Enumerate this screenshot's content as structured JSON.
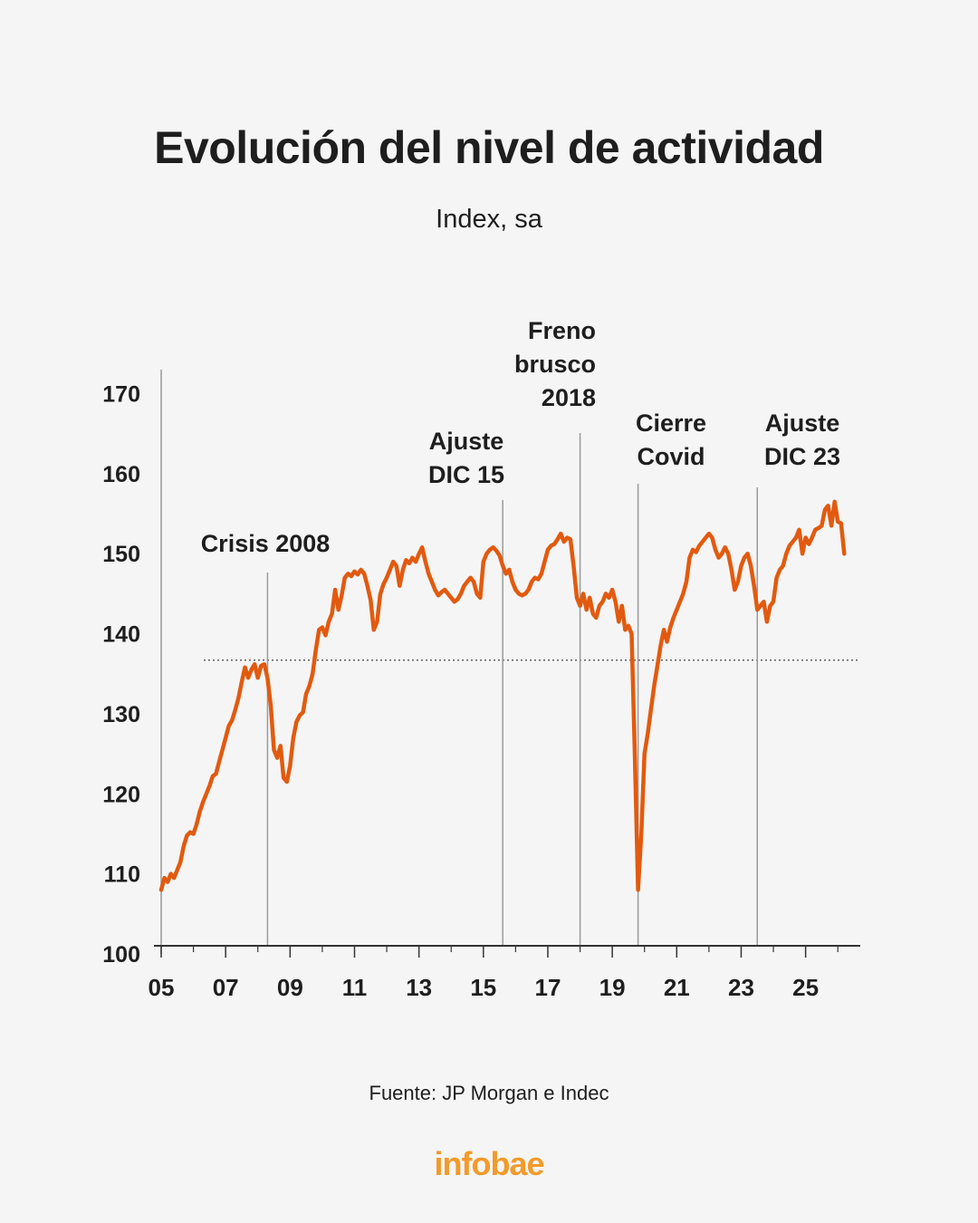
{
  "header": {
    "title": "Evolución del nivel de actividad",
    "subtitle": "Index, sa"
  },
  "footer": {
    "source": "Fuente: JP Morgan e Indec",
    "brand": "infobae"
  },
  "colors": {
    "line": "#e25a0f",
    "axis": "#333333",
    "event_line": "#9a9a9a",
    "brand": "#f39a2a"
  },
  "chart_data": {
    "type": "line",
    "title": "Evolución del nivel de actividad",
    "subtitle": "Index, sa",
    "xlabel": "",
    "ylabel": "",
    "xlim": [
      2005,
      2026.5
    ],
    "ylim": [
      100,
      173
    ],
    "y_ticks": [
      100,
      110,
      120,
      130,
      140,
      150,
      160,
      170
    ],
    "x_ticks": [
      2005,
      2007,
      2009,
      2011,
      2013,
      2015,
      2017,
      2019,
      2021,
      2023,
      2025
    ],
    "x_tick_labels": [
      "05",
      "07",
      "09",
      "11",
      "13",
      "15",
      "17",
      "19",
      "21",
      "23",
      "25"
    ],
    "grid": false,
    "reference_line": {
      "y": 136.7,
      "style": "dotted"
    },
    "series": [
      {
        "x": [
          2005.0,
          2005.1,
          2005.2,
          2005.3,
          2005.4,
          2005.5,
          2005.6,
          2005.7,
          2005.8,
          2005.9,
          2006.0,
          2006.1,
          2006.2,
          2006.3,
          2006.4,
          2006.5,
          2006.6,
          2006.7,
          2006.8,
          2006.9,
          2007.0,
          2007.1,
          2007.2,
          2007.3,
          2007.4,
          2007.5,
          2007.6,
          2007.7,
          2007.8,
          2007.9,
          2008.0,
          2008.1,
          2008.2,
          2008.3,
          2008.4,
          2008.5,
          2008.6,
          2008.7,
          2008.8,
          2008.9,
          2009.0,
          2009.1,
          2009.2,
          2009.3,
          2009.4,
          2009.5,
          2009.6,
          2009.7,
          2009.8,
          2009.9,
          2010.0,
          2010.1,
          2010.2,
          2010.3,
          2010.4,
          2010.5,
          2010.6,
          2010.7,
          2010.8,
          2010.9,
          2011.0,
          2011.1,
          2011.2,
          2011.3,
          2011.4,
          2011.5,
          2011.6,
          2011.7,
          2011.8,
          2011.9,
          2012.0,
          2012.1,
          2012.2,
          2012.3,
          2012.4,
          2012.5,
          2012.6,
          2012.7,
          2012.8,
          2012.9,
          2013.0,
          2013.1,
          2013.2,
          2013.3,
          2013.4,
          2013.5,
          2013.6,
          2013.7,
          2013.8,
          2013.9,
          2014.0,
          2014.1,
          2014.2,
          2014.3,
          2014.4,
          2014.5,
          2014.6,
          2014.7,
          2014.8,
          2014.9,
          2015.0,
          2015.1,
          2015.2,
          2015.3,
          2015.4,
          2015.5,
          2015.6,
          2015.7,
          2015.8,
          2015.9,
          2016.0,
          2016.1,
          2016.2,
          2016.3,
          2016.4,
          2016.5,
          2016.6,
          2016.7,
          2016.8,
          2016.9,
          2017.0,
          2017.1,
          2017.2,
          2017.3,
          2017.4,
          2017.5,
          2017.6,
          2017.7,
          2017.8,
          2017.9,
          2018.0,
          2018.1,
          2018.2,
          2018.3,
          2018.4,
          2018.5,
          2018.6,
          2018.7,
          2018.8,
          2018.9,
          2019.0,
          2019.1,
          2019.2,
          2019.3,
          2019.4,
          2019.5,
          2019.6,
          2019.7,
          2019.8,
          2019.9,
          2020.0,
          2020.1,
          2020.2,
          2020.3,
          2020.4,
          2020.5,
          2020.6,
          2020.7,
          2020.8,
          2020.9,
          2021.0,
          2021.1,
          2021.2,
          2021.3,
          2021.4,
          2021.5,
          2021.6,
          2021.7,
          2021.8,
          2021.9,
          2022.0,
          2022.1,
          2022.2,
          2022.3,
          2022.4,
          2022.5,
          2022.6,
          2022.7,
          2022.8,
          2022.9,
          2023.0,
          2023.1,
          2023.2,
          2023.3,
          2023.4,
          2023.5,
          2023.6,
          2023.7,
          2023.8,
          2023.9,
          2024.0,
          2024.1,
          2024.2,
          2024.3,
          2024.4,
          2024.5,
          2024.6,
          2024.7,
          2024.8,
          2024.9,
          2025.0,
          2025.1,
          2025.2,
          2025.3,
          2025.4,
          2025.5,
          2025.6,
          2025.7,
          2025.8,
          2025.9,
          2026.0,
          2026.1,
          2026.2
        ],
        "values": [
          108.0,
          109.5,
          109.0,
          110.0,
          109.5,
          110.5,
          111.5,
          113.5,
          114.8,
          115.2,
          115.0,
          116.2,
          117.8,
          119.0,
          120.0,
          121.0,
          122.2,
          122.5,
          124.0,
          125.5,
          127.0,
          128.5,
          129.2,
          130.5,
          132.0,
          134.0,
          135.8,
          134.5,
          135.5,
          136.2,
          134.5,
          136.0,
          136.2,
          134.5,
          131.0,
          125.5,
          124.5,
          126.0,
          122.0,
          121.5,
          123.5,
          127.0,
          129.0,
          129.8,
          130.2,
          132.5,
          133.5,
          135.0,
          138.0,
          140.5,
          140.8,
          139.8,
          141.5,
          142.5,
          145.5,
          143.0,
          144.8,
          147.0,
          147.5,
          147.2,
          147.8,
          147.4,
          148.0,
          147.5,
          146.0,
          144.2,
          140.5,
          141.5,
          145.0,
          146.2,
          147.0,
          148.0,
          149.0,
          148.5,
          146.0,
          148.0,
          149.2,
          148.8,
          149.5,
          149.0,
          150.0,
          150.8,
          149.0,
          147.5,
          146.5,
          145.5,
          144.8,
          145.2,
          145.5,
          145.0,
          144.5,
          144.0,
          144.3,
          145.0,
          146.0,
          146.5,
          147.0,
          146.5,
          145.0,
          144.5,
          149.0,
          150.0,
          150.5,
          150.8,
          150.4,
          149.8,
          148.5,
          147.5,
          148.0,
          146.5,
          145.5,
          145.0,
          144.8,
          145.0,
          145.5,
          146.5,
          147.0,
          146.8,
          147.5,
          149.0,
          150.5,
          151.0,
          151.2,
          151.8,
          152.5,
          151.5,
          152.0,
          151.8,
          148.5,
          144.5,
          143.5,
          145.0,
          143.0,
          144.5,
          142.5,
          142.0,
          143.5,
          144.0,
          145.0,
          144.5,
          145.5,
          144.0,
          141.5,
          143.5,
          140.5,
          141.0,
          140.0,
          125.0,
          108.0,
          115.0,
          125.0,
          127.5,
          130.5,
          133.5,
          136.0,
          138.5,
          140.5,
          139.0,
          140.8,
          142.0,
          143.0,
          144.0,
          145.0,
          146.5,
          149.5,
          150.5,
          150.2,
          151.0,
          151.5,
          152.0,
          152.5,
          152.0,
          150.5,
          149.5,
          150.0,
          150.8,
          150.0,
          148.0,
          145.5,
          146.5,
          148.5,
          149.5,
          150.0,
          148.5,
          146.0,
          143.0,
          143.5,
          144.0,
          141.5,
          143.5,
          144.0,
          147.0,
          148.0,
          148.5,
          150.0,
          151.0,
          151.5,
          152.0,
          153.0,
          150.0,
          152.0,
          151.2,
          152.0,
          153.0,
          153.2,
          153.5,
          155.5,
          156.0,
          153.5,
          156.5,
          154.0,
          153.8,
          150.0
        ]
      }
    ],
    "annotations": [
      {
        "x": 2008.3,
        "lines": [
          "Crisis 2008"
        ]
      },
      {
        "x": 2015.6,
        "lines": [
          "Ajuste",
          "DIC 15"
        ]
      },
      {
        "x": 2018.0,
        "lines": [
          "Freno",
          "brusco",
          "2018"
        ]
      },
      {
        "x": 2019.8,
        "lines": [
          "Cierre",
          "Covid"
        ]
      },
      {
        "x": 2023.5,
        "lines": [
          "Ajuste",
          "DIC 23"
        ]
      }
    ]
  }
}
